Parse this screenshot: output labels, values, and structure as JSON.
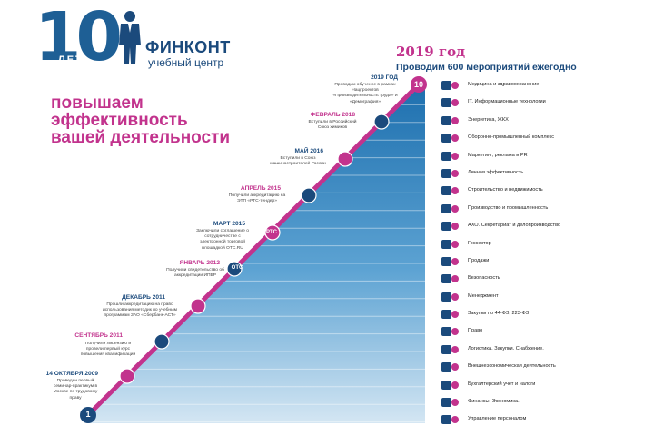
{
  "logo": {
    "big_number": "10",
    "years": "ЛЕТ",
    "name": "ФИНКОНТ",
    "subtitle": "учебный центр"
  },
  "slogan": [
    "повышаем",
    "эффективность",
    "вашей деятельности"
  ],
  "year_block": {
    "title": "2019 год",
    "subtitle": "Проводим 600 мероприятий ежегодно"
  },
  "timeline": {
    "start_step": "1",
    "end_step": "10",
    "milestones": [
      {
        "date": "14 ОКТЯБРЯ 2009",
        "desc": "Проведен первый семинар-практикум в Москве по трудовому праву"
      },
      {
        "date": "СЕНТЯБРЬ 2011",
        "desc": "Получили лицензию и провели первый курс повышения квалификации"
      },
      {
        "date": "ДЕКАБРЬ 2011",
        "desc": "Прошли аккредитацию на право использования методик по учебным программам ЗАО «Сбербанк-АСТ»"
      },
      {
        "date": "ЯНВАРЬ 2012",
        "desc": "Получили свидетельство об аккредитации ИПБР"
      },
      {
        "date": "МАРТ 2015",
        "desc": "Заключили соглашение о сотрудничестве с электронной торговой площадкой OTC.RU"
      },
      {
        "date": "АПРЕЛЬ 2015",
        "desc": "Получили аккредитацию на ЭТП «РТС-тендер»"
      },
      {
        "date": "МАЙ 2016",
        "desc": "Вступили в Союз машиностроителей России"
      },
      {
        "date": "ФЕВРАЛЬ 2018",
        "desc": "Вступили в Российский Союз химиков"
      },
      {
        "date": "2019 ГОД",
        "desc": "Проводим обучение в рамках Нацпроектов «Производительность труда» и «Демография»"
      }
    ],
    "badges": {
      "otc": "OTC",
      "rtc": "РТС"
    }
  },
  "directions": [
    {
      "label": "Медицина и здравоохранение",
      "icon": "medical-icon"
    },
    {
      "label": "IT. Информационные технологии",
      "icon": "it-icon"
    },
    {
      "label": "Энергетика, ЖКХ",
      "icon": "energy-icon"
    },
    {
      "label": "Оборонно-промышленный комплекс",
      "icon": "defense-icon"
    },
    {
      "label": "Маркетинг, реклама и PR",
      "icon": "marketing-icon"
    },
    {
      "label": "Личная эффективность",
      "icon": "person-icon"
    },
    {
      "label": "Строительство и недвижимость",
      "icon": "construction-icon"
    },
    {
      "label": "Производство и промышленность",
      "icon": "factory-icon"
    },
    {
      "label": "АХО. Секретариат и делопроизводство",
      "icon": "office-icon"
    },
    {
      "label": "Госсектор",
      "icon": "government-icon"
    },
    {
      "label": "Продажи",
      "icon": "sales-icon"
    },
    {
      "label": "Безопасность",
      "icon": "security-icon"
    },
    {
      "label": "Менеджмент",
      "icon": "management-icon"
    },
    {
      "label": "Закупки по 44-ФЗ, 223-ФЗ",
      "icon": "procurement-icon"
    },
    {
      "label": "Право",
      "icon": "law-icon"
    },
    {
      "label": "Логистика. Закупки. Снабжение.",
      "icon": "logistics-icon"
    },
    {
      "label": "Внешнеэкономическая деятельность",
      "icon": "globe-icon"
    },
    {
      "label": "Бухгалтерский учет и налоги",
      "icon": "accounting-icon"
    },
    {
      "label": "Финансы. Экономика.",
      "icon": "finance-icon"
    },
    {
      "label": "Управление персоналом",
      "icon": "hr-icon"
    }
  ],
  "colors": {
    "navy": "#1b4a7c",
    "pink": "#c2338d",
    "blue": "#2a7ab8",
    "light_blue": "#c9dff0"
  }
}
